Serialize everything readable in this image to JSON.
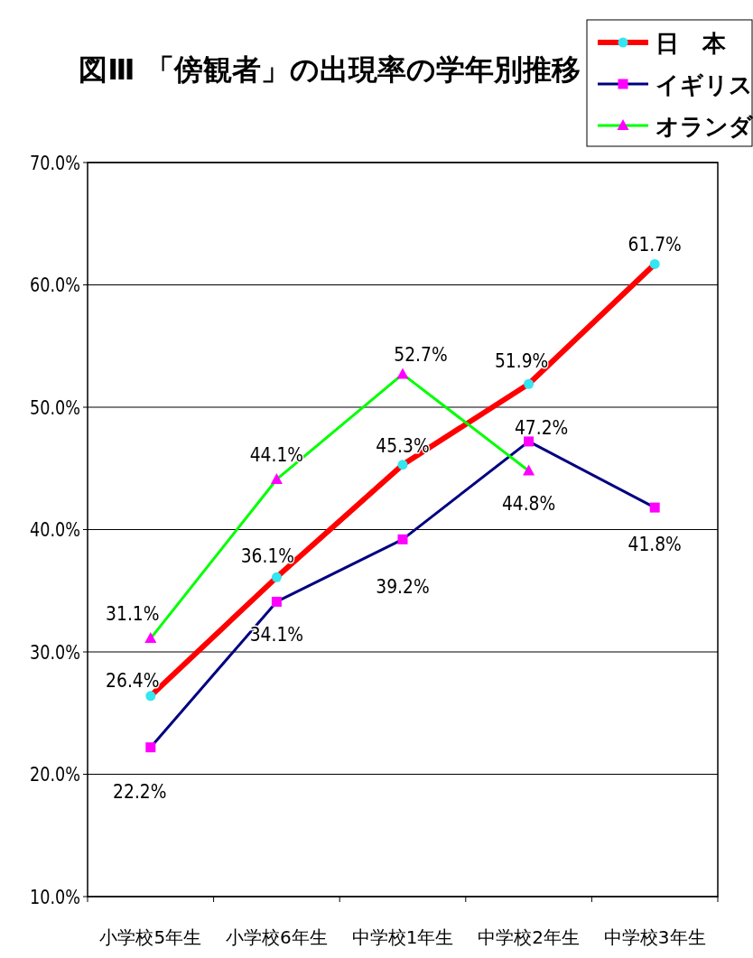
{
  "chart_data": {
    "type": "line",
    "title": "図Ⅲ 「傍観者」の出現率の学年別推移",
    "categories": [
      "小学校5年生",
      "小学校6年生",
      "中学校1年生",
      "中学校2年生",
      "中学校3年生"
    ],
    "series": [
      {
        "name": "日　本",
        "color": "#ff0000",
        "marker": "circle",
        "colors": [
          "#33e6f0",
          "#33e6f0",
          "#33e6f0",
          "#33e6f0",
          "#33e6f0"
        ],
        "values": [
          26.4,
          36.1,
          45.3,
          51.9,
          61.7
        ],
        "value_labels": [
          "26.4%",
          "36.1%",
          "45.3%",
          "51.9%",
          "61.7%"
        ]
      },
      {
        "name": "イギリス",
        "color": "#000080",
        "marker": "square",
        "colors": [
          "#ff00ff",
          "#ff00ff",
          "#ff00ff",
          "#ff00ff",
          "#ff00ff"
        ],
        "values": [
          22.2,
          34.1,
          39.2,
          47.2,
          41.8
        ],
        "value_labels": [
          "22.2%",
          "34.1%",
          "39.2%",
          "47.2%",
          "41.8%"
        ]
      },
      {
        "name": "オランダ",
        "color": "#00ff00",
        "marker": "triangle",
        "colors": [
          "#ff00ff",
          "#ff00ff",
          "#ff00ff",
          "#ff00ff",
          null
        ],
        "values": [
          31.1,
          44.1,
          52.7,
          44.8,
          null
        ],
        "value_labels": [
          "31.1%",
          "44.1%",
          "52.7%",
          "44.8%",
          null
        ]
      }
    ],
    "ylim": [
      10,
      70
    ],
    "yticks": [
      {
        "value": 10,
        "label": "10.0%"
      },
      {
        "value": 20,
        "label": "20.0%"
      },
      {
        "value": 30,
        "label": "30.0%"
      },
      {
        "value": 40,
        "label": "40.0%"
      },
      {
        "value": 50,
        "label": "50.0%"
      },
      {
        "value": 60,
        "label": "60.0%"
      },
      {
        "value": 70,
        "label": "70.0%"
      }
    ],
    "grid": "y",
    "legend": "top right"
  }
}
